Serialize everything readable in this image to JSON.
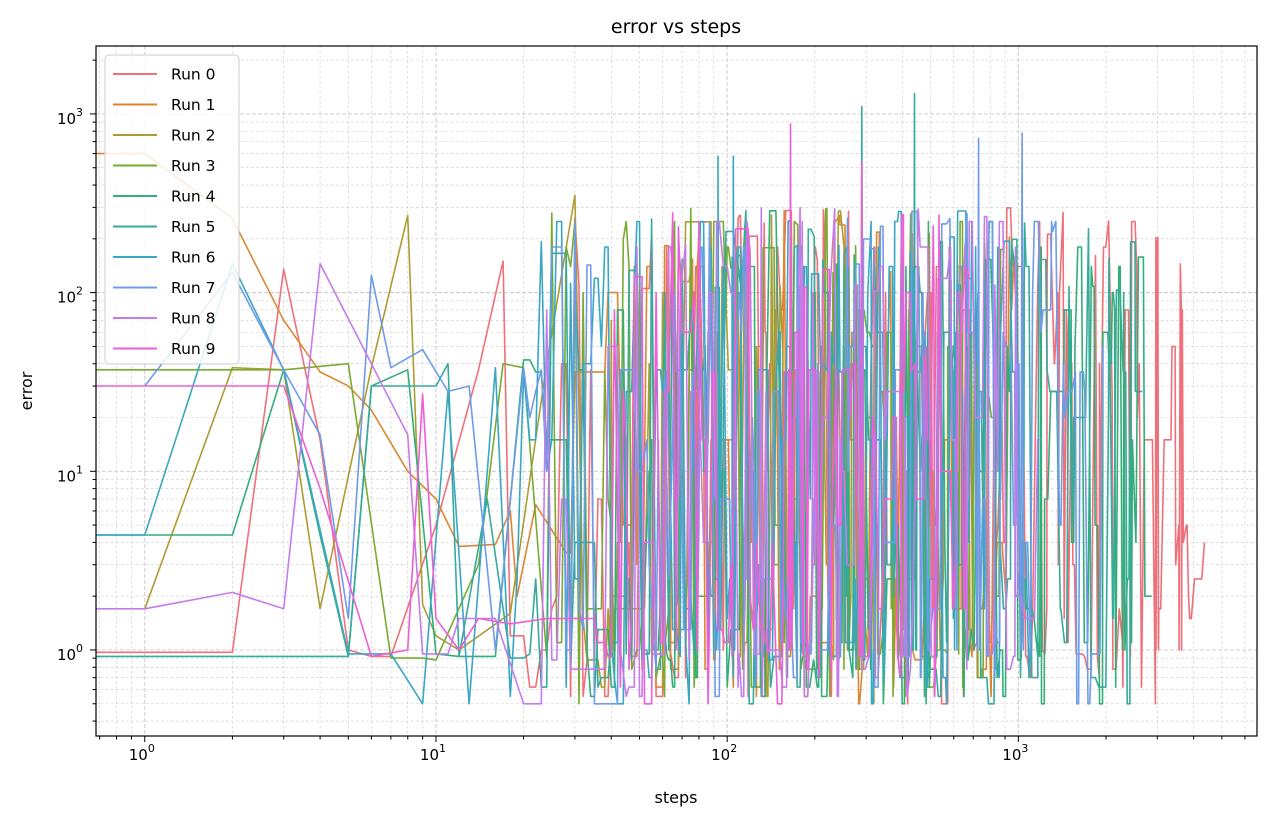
{
  "chart_data": {
    "type": "line",
    "title": "error vs steps",
    "xlabel": "steps",
    "ylabel": "error",
    "xscale": "log",
    "yscale": "log",
    "xlim": [
      0.68,
      6600
    ],
    "ylim": [
      0.33,
      2400
    ],
    "grid": true,
    "legend_position": "upper-left",
    "x_ticks": [
      {
        "base": "10",
        "exp": "0"
      },
      {
        "base": "10",
        "exp": "1"
      },
      {
        "base": "10",
        "exp": "2"
      },
      {
        "base": "10",
        "exp": "3"
      }
    ],
    "y_ticks": [
      {
        "base": "10",
        "exp": "0"
      },
      {
        "base": "10",
        "exp": "1"
      },
      {
        "base": "10",
        "exp": "2"
      },
      {
        "base": "10",
        "exp": "3"
      }
    ],
    "series": [
      {
        "name": "Run 0",
        "color": "#f0707a",
        "seed": 11,
        "max_step": 4400,
        "start": [
          [
            0.68,
            0.97
          ],
          [
            1,
            0.97
          ],
          [
            2,
            0.97
          ],
          [
            3,
            135
          ],
          [
            4,
            15
          ],
          [
            5,
            1.0
          ],
          [
            6,
            0.92
          ],
          [
            7,
            0.92
          ],
          [
            10,
            5
          ],
          [
            14,
            37
          ],
          [
            17,
            150
          ],
          [
            18,
            1.2
          ]
        ],
        "spikes": [
          [
            3000,
            190
          ],
          [
            3600,
            145
          ]
        ]
      },
      {
        "name": "Run 1",
        "color": "#dc8632",
        "seed": 23,
        "max_step": 1000,
        "start": [
          [
            0.68,
            600
          ],
          [
            1,
            600
          ],
          [
            2,
            260
          ],
          [
            3,
            70
          ],
          [
            4,
            36
          ],
          [
            5,
            30
          ],
          [
            6,
            22
          ],
          [
            8,
            10
          ],
          [
            10,
            7
          ],
          [
            12,
            3.8
          ],
          [
            16,
            3.9
          ],
          [
            18,
            6
          ],
          [
            19,
            2.0
          ],
          [
            22,
            6.5
          ],
          [
            28,
            3.5
          ]
        ],
        "spikes": []
      },
      {
        "name": "Run 2",
        "color": "#ad9c32",
        "seed": 37,
        "max_step": 320,
        "start": [
          [
            1,
            1.7
          ],
          [
            2,
            38
          ],
          [
            3,
            37
          ],
          [
            4,
            1.7
          ],
          [
            6,
            38
          ],
          [
            8,
            270
          ],
          [
            9,
            1.8
          ],
          [
            10,
            1.2
          ],
          [
            12,
            1.0
          ],
          [
            18,
            1.6
          ],
          [
            24,
            40
          ],
          [
            30,
            350
          ],
          [
            32,
            1.5
          ]
        ],
        "spikes": [
          [
            40,
            70
          ]
        ]
      },
      {
        "name": "Run 3",
        "color": "#79aa32",
        "seed": 41,
        "max_step": 900,
        "start": [
          [
            0.68,
            37
          ],
          [
            1,
            37
          ],
          [
            2,
            37
          ],
          [
            3,
            37
          ],
          [
            5,
            40
          ],
          [
            7,
            0.9
          ],
          [
            9,
            0.9
          ],
          [
            10,
            0.88
          ],
          [
            14,
            3
          ],
          [
            17,
            40
          ],
          [
            20,
            38
          ],
          [
            24,
            0.92
          ]
        ],
        "spikes": []
      },
      {
        "name": "Run 4",
        "color": "#33ad7a",
        "seed": 53,
        "max_step": 2900,
        "start": [
          [
            0.68,
            4.4
          ],
          [
            1,
            4.4
          ],
          [
            2,
            4.4
          ],
          [
            3,
            37
          ],
          [
            4,
            4.4
          ],
          [
            5,
            0.92
          ],
          [
            6,
            30
          ],
          [
            8,
            37
          ],
          [
            10,
            0.95
          ],
          [
            12,
            0.92
          ],
          [
            16,
            0.92
          ],
          [
            20,
            42
          ]
        ],
        "spikes": [
          [
            2300,
            100
          ]
        ]
      },
      {
        "name": "Run 5",
        "color": "#36ab9c",
        "seed": 67,
        "max_step": 2700,
        "start": [
          [
            0.68,
            0.92
          ],
          [
            1,
            0.92
          ],
          [
            2,
            0.92
          ],
          [
            3,
            0.92
          ],
          [
            4,
            0.92
          ],
          [
            5,
            0.92
          ],
          [
            6,
            30
          ],
          [
            8,
            30
          ],
          [
            10,
            30
          ],
          [
            11,
            40
          ],
          [
            12,
            0.92
          ],
          [
            15,
            7
          ],
          [
            18,
            0.9
          ]
        ],
        "spikes": [
          [
            290,
            1100
          ],
          [
            440,
            1300
          ]
        ]
      },
      {
        "name": "Run 6",
        "color": "#39a7c4",
        "seed": 71,
        "max_step": 1150,
        "start": [
          [
            0.68,
            4.4
          ],
          [
            1,
            4.4
          ],
          [
            2,
            145
          ],
          [
            3,
            37
          ],
          [
            5,
            0.95
          ],
          [
            7,
            0.95
          ],
          [
            9,
            0.5
          ],
          [
            11,
            28
          ],
          [
            13,
            0.5
          ],
          [
            16,
            38
          ],
          [
            18,
            0.55
          ]
        ],
        "spikes": [
          [
            93,
            580
          ],
          [
            105,
            580
          ]
        ]
      },
      {
        "name": "Run 7",
        "color": "#6f9be9",
        "seed": 83,
        "max_step": 2000,
        "start": [
          [
            1,
            30
          ],
          [
            2,
            130
          ],
          [
            3,
            37
          ],
          [
            4,
            16
          ],
          [
            5,
            1.5
          ],
          [
            6,
            125
          ],
          [
            7,
            38
          ],
          [
            9,
            48
          ],
          [
            11,
            28
          ],
          [
            13,
            30
          ],
          [
            16,
            1.0
          ],
          [
            20,
            38
          ]
        ],
        "spikes": [
          [
            1030,
            780
          ],
          [
            730,
            730
          ]
        ]
      },
      {
        "name": "Run 8",
        "color": "#c67bea",
        "seed": 97,
        "max_step": 1200,
        "start": [
          [
            0.68,
            1.7
          ],
          [
            1,
            1.7
          ],
          [
            2,
            2.1
          ],
          [
            3,
            1.7
          ],
          [
            4,
            145
          ],
          [
            6,
            40
          ],
          [
            8,
            16
          ],
          [
            9,
            0.95
          ],
          [
            11,
            0.95
          ],
          [
            12,
            1.5
          ],
          [
            16,
            1.5
          ],
          [
            20,
            0.5
          ]
        ],
        "spikes": []
      },
      {
        "name": "Run 9",
        "color": "#ee5ed6",
        "seed": 101,
        "max_step": 700,
        "start": [
          [
            0.68,
            30
          ],
          [
            1,
            30
          ],
          [
            2,
            30
          ],
          [
            3,
            30
          ],
          [
            4,
            8
          ],
          [
            6,
            0.92
          ],
          [
            8,
            1.0
          ],
          [
            9,
            27
          ],
          [
            10,
            1.5
          ],
          [
            12,
            1.0
          ],
          [
            14,
            1.5
          ],
          [
            18,
            1.4
          ],
          [
            24,
            1.5
          ],
          [
            30,
            1.5
          ]
        ],
        "spikes": [
          [
            165,
            880
          ],
          [
            290,
            540
          ]
        ]
      }
    ]
  }
}
